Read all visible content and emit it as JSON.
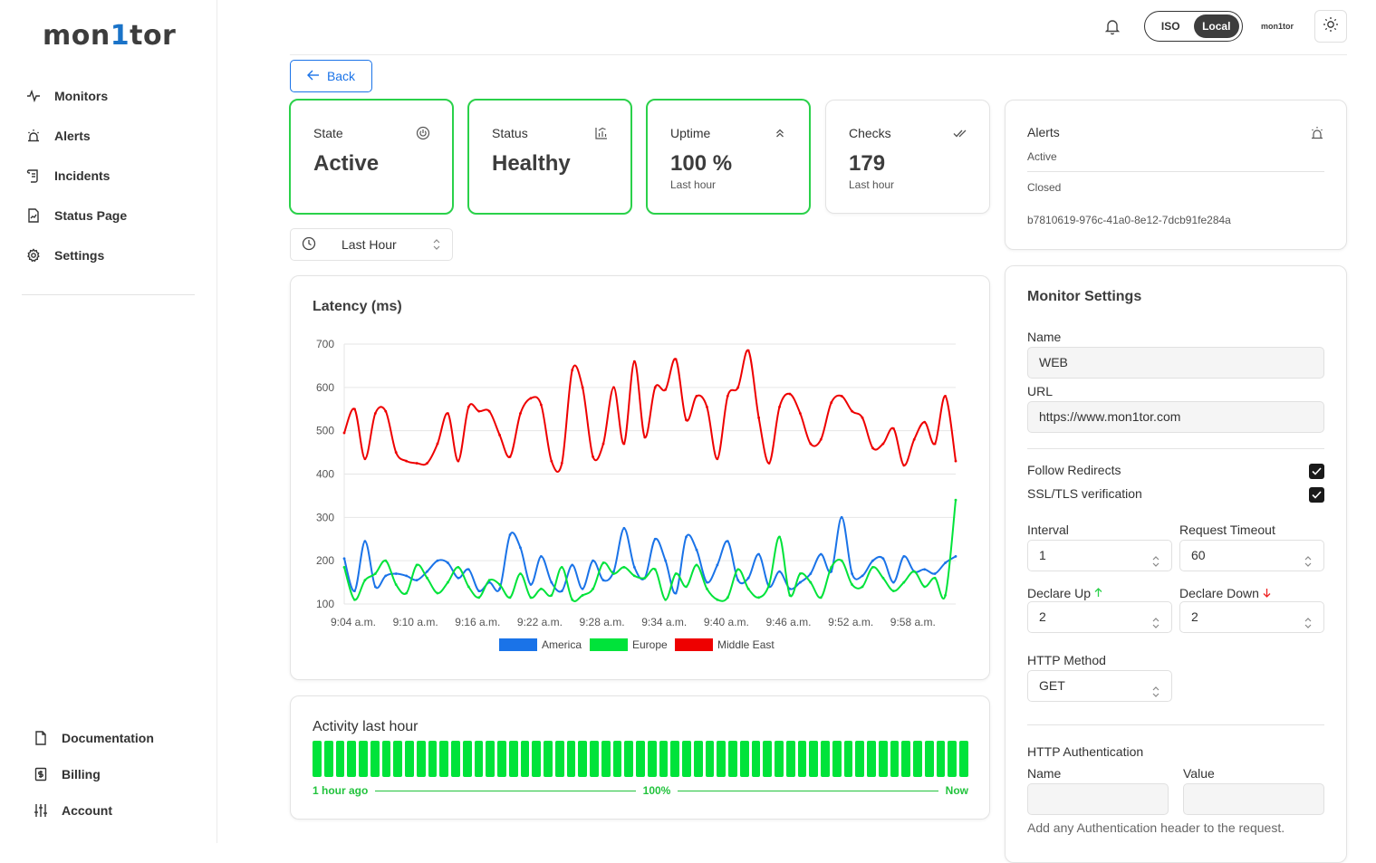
{
  "app": {
    "logo_pre": "mon",
    "logo_one": "1",
    "logo_post": "tor"
  },
  "sidebar": {
    "items": [
      {
        "label": "Monitors",
        "icon": "activity-icon"
      },
      {
        "label": "Alerts",
        "icon": "siren-icon"
      },
      {
        "label": "Incidents",
        "icon": "scroll-icon"
      },
      {
        "label": "Status Page",
        "icon": "file-chart-icon"
      },
      {
        "label": "Settings",
        "icon": "gear-icon"
      }
    ],
    "bottom": [
      {
        "label": "Documentation",
        "icon": "document-icon"
      },
      {
        "label": "Billing",
        "icon": "dollar-receipt-icon"
      },
      {
        "label": "Account",
        "icon": "sliders-icon"
      }
    ]
  },
  "header": {
    "time_toggle": {
      "options": [
        "ISO",
        "Local"
      ],
      "selected": "Local"
    },
    "avatar_text": "mon1tor"
  },
  "back_label": "Back",
  "stats": [
    {
      "label": "State",
      "value": "Active",
      "sub": "",
      "icon": "power-icon"
    },
    {
      "label": "Status",
      "value": "Healthy",
      "sub": "",
      "icon": "chart-icon"
    },
    {
      "label": "Uptime",
      "value": "100 %",
      "sub": "Last hour",
      "icon": "chevrons-up-icon"
    },
    {
      "label": "Checks",
      "value": "179",
      "sub": "Last hour",
      "icon": "double-check-icon"
    }
  ],
  "range_select": {
    "value": "Last Hour"
  },
  "latency_title": "Latency (ms)",
  "chart_data": {
    "type": "line",
    "title": "Latency (ms)",
    "xlabel": "",
    "ylabel": "",
    "ylim": [
      100,
      700
    ],
    "yticks": [
      100,
      200,
      300,
      400,
      500,
      600,
      700
    ],
    "xticks": [
      "9:04 a.m.",
      "9:10 a.m.",
      "9:16 a.m.",
      "9:22 a.m.",
      "9:28 a.m.",
      "9:34 a.m.",
      "9:40 a.m.",
      "9:46 a.m.",
      "9:52 a.m.",
      "9:58 a.m."
    ],
    "x": [
      0,
      1,
      2,
      3,
      4,
      5,
      6,
      7,
      8,
      9,
      10,
      11,
      12,
      13,
      14,
      15,
      16,
      17,
      18,
      19,
      20,
      21,
      22,
      23,
      24,
      25,
      26,
      27,
      28,
      29,
      30,
      31,
      32,
      33,
      34,
      35,
      36,
      37,
      38,
      39,
      40,
      41,
      42,
      43,
      44,
      45,
      46,
      47,
      48,
      49,
      50,
      51,
      52,
      53,
      54,
      55,
      56,
      57,
      58,
      59
    ],
    "legend_position": "bottom",
    "grid": true,
    "series": [
      {
        "name": "America",
        "color": "#1a73e8",
        "values": [
          205,
          130,
          245,
          140,
          165,
          170,
          165,
          155,
          175,
          200,
          195,
          160,
          180,
          130,
          150,
          135,
          260,
          230,
          145,
          210,
          150,
          130,
          190,
          135,
          200,
          155,
          175,
          275,
          185,
          160,
          250,
          200,
          125,
          255,
          225,
          150,
          190,
          245,
          155,
          160,
          215,
          140,
          175,
          135,
          150,
          170,
          215,
          175,
          300,
          170,
          165,
          200,
          205,
          150,
          210,
          175,
          180,
          170,
          195,
          210
        ]
      },
      {
        "name": "Europe",
        "color": "#00e33a",
        "values": [
          185,
          110,
          155,
          170,
          200,
          145,
          125,
          190,
          160,
          125,
          150,
          185,
          140,
          115,
          155,
          145,
          115,
          170,
          115,
          135,
          120,
          185,
          110,
          120,
          135,
          195,
          170,
          185,
          165,
          160,
          180,
          110,
          170,
          140,
          190,
          135,
          110,
          115,
          180,
          135,
          115,
          145,
          255,
          120,
          170,
          150,
          115,
          185,
          200,
          145,
          140,
          185,
          160,
          130,
          150,
          175,
          140,
          160,
          120,
          340
        ]
      },
      {
        "name": "Middle East",
        "color": "#ee0000",
        "values": [
          495,
          550,
          435,
          540,
          545,
          450,
          430,
          425,
          425,
          470,
          540,
          430,
          555,
          545,
          545,
          490,
          440,
          540,
          575,
          560,
          430,
          425,
          640,
          600,
          440,
          470,
          600,
          470,
          660,
          485,
          600,
          595,
          665,
          525,
          580,
          555,
          435,
          580,
          600,
          685,
          530,
          425,
          555,
          585,
          540,
          470,
          480,
          565,
          580,
          545,
          530,
          460,
          470,
          505,
          420,
          480,
          520,
          470,
          580,
          430
        ]
      }
    ]
  },
  "activity": {
    "title": "Activity last hour",
    "bar_count": 57,
    "bar_color": "#00e33a",
    "start_label": "1 hour ago",
    "center_label": "100%",
    "end_label": "Now"
  },
  "alerts": {
    "title": "Alerts",
    "active_label": "Active",
    "closed_label": "Closed",
    "id": "b7810619-976c-41a0-8e12-7dcb91fe284a"
  },
  "settings": {
    "title": "Monitor Settings",
    "name_label": "Name",
    "name_value": "WEB",
    "url_label": "URL",
    "url_value": "https://www.mon1tor.com",
    "follow_redirects_label": "Follow Redirects",
    "follow_redirects": true,
    "ssl_label": "SSL/TLS verification",
    "ssl": true,
    "interval_label": "Interval",
    "interval_value": "1",
    "timeout_label": "Request Timeout",
    "timeout_value": "60",
    "declare_up_label": "Declare Up",
    "declare_up_value": "2",
    "declare_down_label": "Declare Down",
    "declare_down_value": "2",
    "method_label": "HTTP Method",
    "method_value": "GET",
    "auth_title": "HTTP Authentication",
    "auth_name_label": "Name",
    "auth_value_label": "Value",
    "auth_hint": "Add any Authentication header to the request."
  }
}
